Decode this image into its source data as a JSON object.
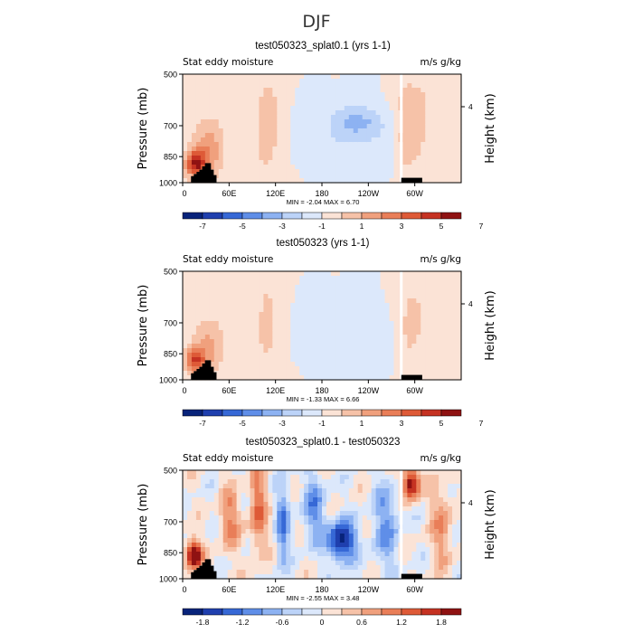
{
  "page": {
    "season": "DJF"
  },
  "colors": {
    "frame": "#000000",
    "neg": [
      "#08237a",
      "#1f3fae",
      "#3668d6",
      "#5f8ee8",
      "#8db2f2",
      "#bcd3f8",
      "#dce8fb"
    ],
    "pos": [
      "#fbe3d6",
      "#f6c2a8",
      "#f0a07d",
      "#e97e58",
      "#de5a37",
      "#c53222",
      "#8f1212"
    ]
  },
  "chart_data": [
    {
      "type": "heatmap",
      "title": "test050323_splat0.1 (yrs 1-1)",
      "left_label": "Stat eddy moisture",
      "right_label": "m/s g/kg",
      "ylabel": "Pressure (mb)",
      "y2label": "Height (km)",
      "y_ticks": [
        "500",
        "700",
        "850",
        "1000"
      ],
      "y2_ticks": [
        "4"
      ],
      "x_ticks": [
        "0",
        "60E",
        "120E",
        "180",
        "120W",
        "60W"
      ],
      "stats_text": "MIN =   -2.04   MAX =   6.70",
      "colorbar_labels": [
        "-7",
        "-5",
        "-3",
        "-1",
        "1",
        "3",
        "5",
        "7"
      ],
      "field_shape": "full"
    },
    {
      "type": "heatmap",
      "title": "test050323 (yrs 1-1)",
      "left_label": "Stat eddy moisture",
      "right_label": "m/s g/kg",
      "ylabel": "Pressure (mb)",
      "y2label": "Height (km)",
      "y_ticks": [
        "500",
        "700",
        "850",
        "1000"
      ],
      "y2_ticks": [
        "4"
      ],
      "x_ticks": [
        "0",
        "60E",
        "120E",
        "180",
        "120W",
        "60W"
      ],
      "stats_text": "MIN =   -1.33   MAX =   6.66",
      "colorbar_labels": [
        "-7",
        "-5",
        "-3",
        "-1",
        "1",
        "3",
        "5",
        "7"
      ],
      "field_shape": "full"
    },
    {
      "type": "heatmap",
      "title": "test050323_splat0.1 - test050323",
      "left_label": "Stat eddy moisture",
      "right_label": "m/s g/kg",
      "ylabel": "Pressure (mb)",
      "y2label": "Height (km)",
      "y_ticks": [
        "500",
        "700",
        "850",
        "1000"
      ],
      "y2_ticks": [
        "4"
      ],
      "x_ticks": [
        "0",
        "60E",
        "120E",
        "180",
        "120W",
        "60W"
      ],
      "stats_text": "MIN =   -2.55   MAX =   3.48",
      "colorbar_labels": [
        "-1.8",
        "-1.2",
        "-0.6",
        "0",
        "0.6",
        "1.2",
        "1.8"
      ],
      "field_shape": "diff"
    }
  ]
}
